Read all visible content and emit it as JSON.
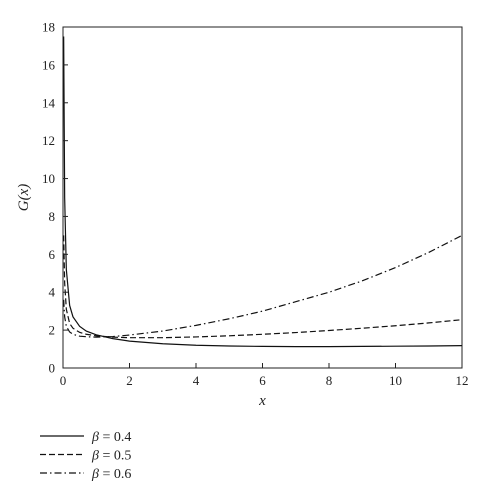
{
  "chart_data": {
    "type": "line",
    "title": "",
    "xlabel": "x",
    "ylabel": "G(x)",
    "xlim": [
      0,
      12
    ],
    "ylim": [
      0,
      18
    ],
    "xticks": [
      0,
      2,
      4,
      6,
      8,
      10,
      12
    ],
    "yticks": [
      0,
      2,
      4,
      6,
      8,
      10,
      12,
      14,
      16,
      18
    ],
    "grid": false,
    "legend_position": "bottom-left, outside plot",
    "series": [
      {
        "name": "β = 0.4",
        "style": "solid",
        "legend_symbol": "β",
        "legend_value": "= 0.4",
        "x": [
          0.02,
          0.05,
          0.1,
          0.2,
          0.3,
          0.5,
          0.7,
          1,
          1.5,
          2,
          3,
          4,
          5,
          6,
          7,
          8,
          9,
          10,
          11,
          12
        ],
        "y": [
          17.5,
          9.0,
          5.2,
          3.3,
          2.7,
          2.2,
          1.95,
          1.75,
          1.55,
          1.42,
          1.28,
          1.2,
          1.16,
          1.14,
          1.13,
          1.13,
          1.14,
          1.15,
          1.16,
          1.18
        ]
      },
      {
        "name": "β = 0.5",
        "style": "dashed",
        "legend_symbol": "β",
        "legend_value": "= 0.5",
        "x": [
          0.02,
          0.05,
          0.1,
          0.2,
          0.3,
          0.5,
          0.7,
          1,
          1.5,
          2,
          3,
          4,
          5,
          6,
          7,
          8,
          9,
          10,
          11,
          12
        ],
        "y": [
          7.0,
          4.5,
          3.1,
          2.35,
          2.1,
          1.88,
          1.78,
          1.7,
          1.63,
          1.6,
          1.6,
          1.64,
          1.7,
          1.78,
          1.87,
          1.98,
          2.1,
          2.23,
          2.38,
          2.55
        ]
      },
      {
        "name": "β = 0.6",
        "style": "dashdot",
        "legend_symbol": "β",
        "legend_value": "= 0.6",
        "x": [
          0.02,
          0.05,
          0.1,
          0.2,
          0.3,
          0.5,
          0.7,
          1,
          1.5,
          2,
          3,
          4,
          5,
          6,
          7,
          8,
          9,
          10,
          11,
          12
        ],
        "y": [
          3.6,
          2.7,
          2.2,
          1.9,
          1.78,
          1.68,
          1.65,
          1.63,
          1.66,
          1.74,
          1.95,
          2.25,
          2.6,
          3.0,
          3.5,
          4.0,
          4.6,
          5.3,
          6.1,
          7.0
        ]
      }
    ]
  }
}
